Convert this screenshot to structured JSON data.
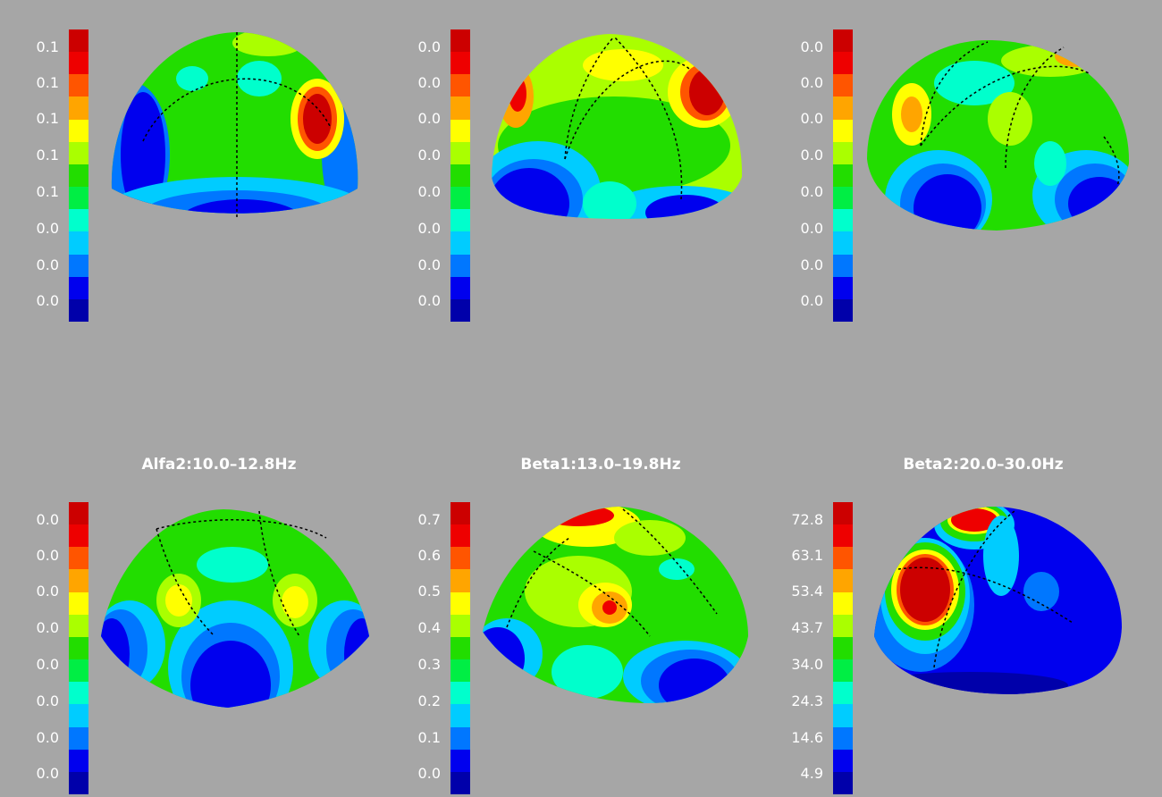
{
  "colormap": [
    "#cc0000",
    "#ee0000",
    "#ff5500",
    "#ffa500",
    "#ffff00",
    "#aaff00",
    "#22dd00",
    "#00ee44",
    "#00ffcc",
    "#00ccff",
    "#0077ff",
    "#0000ee",
    "#0000aa"
  ],
  "panels": [
    {
      "title": "",
      "ticks": [
        "0.1",
        "0.1",
        "0.1",
        "0.1",
        "0.1",
        "0.0",
        "0.0",
        "0.0"
      ]
    },
    {
      "title": "",
      "ticks": [
        "0.0",
        "0.0",
        "0.0",
        "0.0",
        "0.0",
        "0.0",
        "0.0",
        "0.0"
      ]
    },
    {
      "title": "",
      "ticks": [
        "0.0",
        "0.0",
        "0.0",
        "0.0",
        "0.0",
        "0.0",
        "0.0",
        "0.0"
      ]
    },
    {
      "title": "Alfa2:10.0–12.8Hz",
      "ticks": [
        "0.0",
        "0.0",
        "0.0",
        "0.0",
        "0.0",
        "0.0",
        "0.0",
        "0.0"
      ]
    },
    {
      "title": "Beta1:13.0–19.8Hz",
      "ticks": [
        "0.7",
        "0.6",
        "0.5",
        "0.4",
        "0.3",
        "0.2",
        "0.1",
        "0.0"
      ]
    },
    {
      "title": "Beta2:20.0–30.0Hz",
      "ticks": [
        "72.8",
        "63.1",
        "53.4",
        "43.7",
        "34.0",
        "24.3",
        "14.6",
        "4.9"
      ]
    }
  ]
}
